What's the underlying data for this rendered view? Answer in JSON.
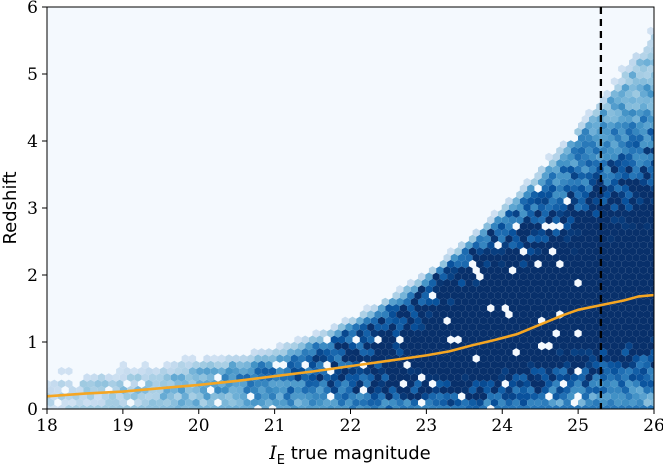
{
  "chart_data": {
    "type": "heatmap",
    "plot_style": "hexbin density with overlaid median line",
    "xlabel": {
      "symbol": "I",
      "subscript": "E",
      "rest": " true magnitude"
    },
    "ylabel": "Redshift",
    "xlim": [
      18,
      26
    ],
    "ylim": [
      0,
      6
    ],
    "x_ticks": [
      "18",
      "19",
      "20",
      "21",
      "22",
      "23",
      "24",
      "25",
      "26"
    ],
    "y_ticks": [
      "0",
      "1",
      "2",
      "3",
      "4",
      "5",
      "6"
    ],
    "grid": false,
    "colormap": "Blues",
    "background_color": "#f4f9fe",
    "median_line": {
      "color": "#f5a623",
      "x": [
        18.0,
        18.5,
        19.0,
        19.5,
        20.0,
        20.5,
        21.0,
        21.5,
        22.0,
        22.5,
        23.0,
        23.3,
        23.6,
        23.9,
        24.2,
        24.5,
        24.8,
        25.0,
        25.3,
        25.6,
        25.8,
        26.0
      ],
      "y": [
        0.19,
        0.23,
        0.26,
        0.31,
        0.36,
        0.42,
        0.49,
        0.56,
        0.64,
        0.72,
        0.8,
        0.86,
        0.95,
        1.03,
        1.12,
        1.26,
        1.4,
        1.48,
        1.55,
        1.62,
        1.68,
        1.7
      ]
    },
    "threshold_line": {
      "x": 25.3,
      "style": "dashed",
      "color": "#000000"
    }
  }
}
